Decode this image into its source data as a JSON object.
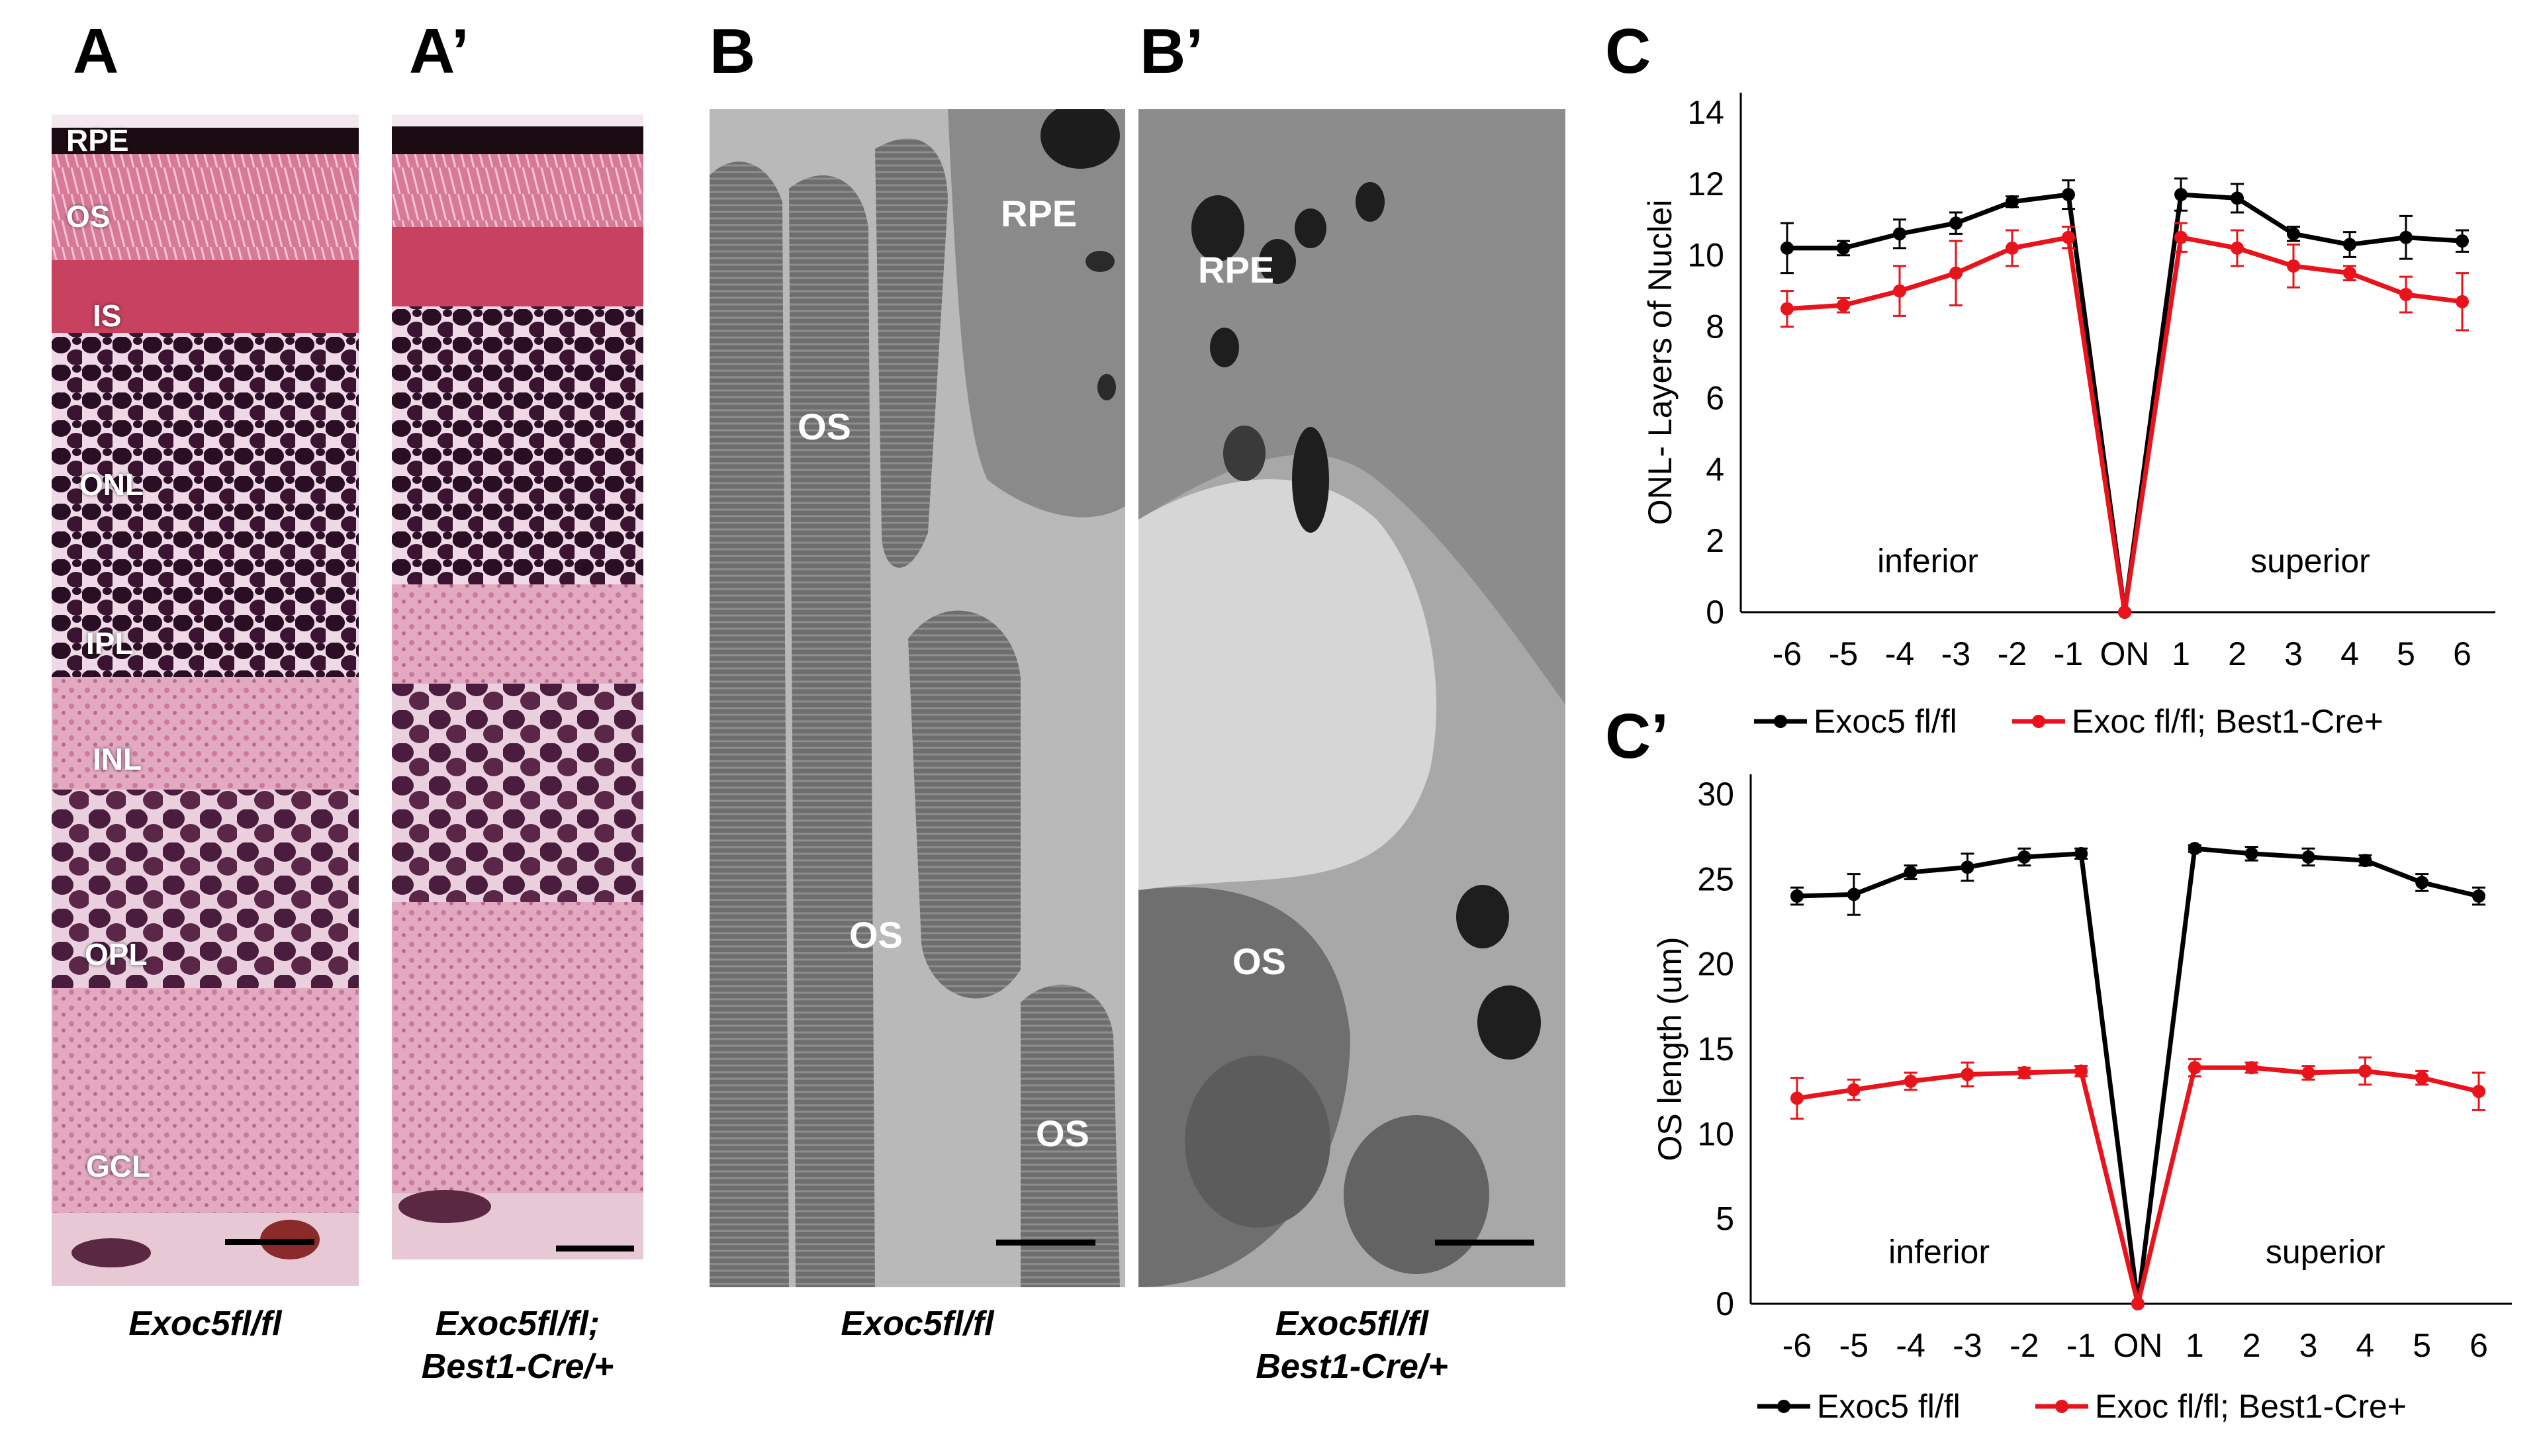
{
  "panels": {
    "A": {
      "letter": "A",
      "caption": "Exoc5fl/fl",
      "layers": [
        "RPE",
        "OS",
        "IS",
        "ONL",
        "IPL",
        "INL",
        "OPL",
        "GCL"
      ]
    },
    "A_prime": {
      "letter": "A’",
      "caption_line1": "Exoc5fl/fl;",
      "caption_line2": "Best1-Cre/+"
    },
    "B": {
      "letter": "B",
      "caption": "Exoc5fl/fl",
      "labels": [
        "RPE",
        "OS",
        "OS",
        "OS"
      ]
    },
    "B_prime": {
      "letter": "B’",
      "caption_line1": "Exoc5fl/fl",
      "caption_line2": "Best1-Cre/+",
      "labels": [
        "RPE",
        "OS"
      ]
    },
    "C": {
      "letter": "C"
    },
    "C_prime": {
      "letter": "C’"
    }
  },
  "colors": {
    "control": "#000000",
    "knockout": "#e8131b"
  },
  "chart_data": [
    {
      "type": "line",
      "id": "C",
      "title": "",
      "xlabel": "",
      "ylabel": "ONL- Layers of Nuclei",
      "categories": [
        "-6",
        "-5",
        "-4",
        "-3",
        "-2",
        "-1",
        "ON",
        "1",
        "2",
        "3",
        "4",
        "5",
        "6"
      ],
      "ylim": [
        0,
        14
      ],
      "yticks": [
        0,
        2,
        4,
        6,
        8,
        10,
        12,
        14
      ],
      "annotations": [
        "inferior",
        "superior"
      ],
      "series": [
        {
          "name": "Exoc5 fl/fl",
          "color": "#000000",
          "values": [
            10.2,
            10.2,
            10.6,
            10.9,
            11.5,
            11.7,
            0,
            11.7,
            11.6,
            10.6,
            10.3,
            10.5,
            10.4
          ],
          "errors": [
            0.7,
            0.2,
            0.4,
            0.3,
            0.15,
            0.4,
            0,
            0.45,
            0.4,
            0.2,
            0.35,
            0.6,
            0.3
          ]
        },
        {
          "name": "Exoc fl/fl; Best1-Cre+",
          "color": "#e8131b",
          "values": [
            8.5,
            8.6,
            9.0,
            9.5,
            10.2,
            10.5,
            0,
            10.5,
            10.2,
            9.7,
            9.5,
            8.9,
            8.7
          ],
          "errors": [
            0.5,
            0.2,
            0.7,
            0.9,
            0.5,
            0.3,
            0,
            0.4,
            0.5,
            0.6,
            0.2,
            0.5,
            0.8
          ]
        }
      ],
      "legend": "bottom"
    },
    {
      "type": "line",
      "id": "C_prime",
      "title": "",
      "xlabel": "",
      "ylabel": "OS length (um)",
      "categories": [
        "-6",
        "-5",
        "-4",
        "-3",
        "-2",
        "-1",
        "ON",
        "1",
        "2",
        "3",
        "4",
        "5",
        "6"
      ],
      "ylim": [
        0,
        30
      ],
      "yticks": [
        0,
        5,
        10,
        15,
        20,
        25,
        30
      ],
      "annotations": [
        "inferior",
        "superior"
      ],
      "series": [
        {
          "name": "Exoc5 fl/fl",
          "color": "#000000",
          "values": [
            24.0,
            24.1,
            25.4,
            25.7,
            26.3,
            26.5,
            0,
            26.8,
            26.5,
            26.3,
            26.1,
            24.8,
            24.0
          ],
          "errors": [
            0.5,
            1.2,
            0.4,
            0.8,
            0.5,
            0.3,
            0,
            0.2,
            0.4,
            0.5,
            0.3,
            0.5,
            0.5
          ]
        },
        {
          "name": "Exoc fl/fl; Best1-Cre+",
          "color": "#e8131b",
          "values": [
            12.1,
            12.6,
            13.1,
            13.5,
            13.6,
            13.7,
            0,
            13.9,
            13.9,
            13.6,
            13.7,
            13.3,
            12.5
          ],
          "errors": [
            1.2,
            0.6,
            0.5,
            0.7,
            0.3,
            0.3,
            0,
            0.5,
            0.3,
            0.4,
            0.8,
            0.4,
            1.1
          ]
        }
      ],
      "legend": "bottom"
    }
  ]
}
